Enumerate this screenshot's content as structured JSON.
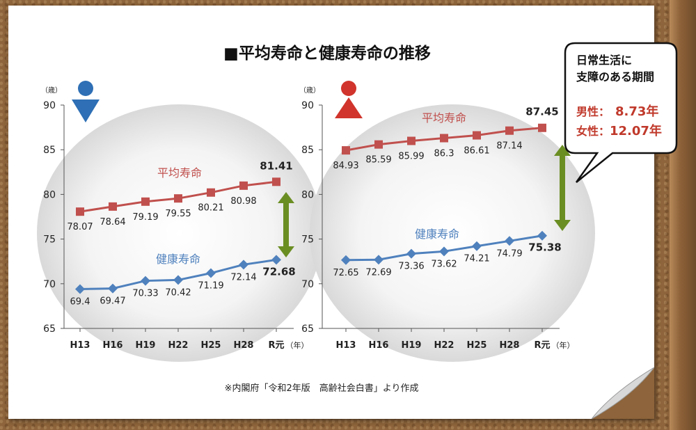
{
  "title": "■平均寿命と健康寿命の推移",
  "source": "※内閣府「令和2年版　高齢社会白書」より作成",
  "y_unit_label": "（歳）",
  "x_unit_label": "（年）",
  "callout": {
    "line1": "日常生活に",
    "line2": "支障のある期間",
    "male_label": "男性：",
    "male_value": "8.73年",
    "female_label": "女性：",
    "female_value": "12.07年"
  },
  "colors": {
    "average": "#c0504d",
    "healthy": "#4f81bd",
    "male_icon": "#2e6fb5",
    "female_icon": "#d0342c",
    "arrow": "#6b8e23"
  },
  "icons": {
    "male": "male-person-icon",
    "female": "female-person-icon"
  },
  "chart_data": [
    {
      "type": "line",
      "panel": "male",
      "categories": [
        "H13",
        "H16",
        "H19",
        "H22",
        "H25",
        "H28",
        "R元"
      ],
      "y_ticks": [
        "65",
        "70",
        "75",
        "80",
        "85",
        "90"
      ],
      "ylim": [
        65,
        90
      ],
      "series": [
        {
          "name": "平均寿命",
          "key": "average",
          "values": [
            78.07,
            78.64,
            79.19,
            79.55,
            80.21,
            80.98,
            81.41
          ],
          "labels": [
            "78.07",
            "78.64",
            "79.19",
            "79.55",
            "80.21",
            "80.98",
            "81.41"
          ]
        },
        {
          "name": "健康寿命",
          "key": "healthy",
          "values": [
            69.4,
            69.47,
            70.33,
            70.42,
            71.19,
            72.14,
            72.68
          ],
          "labels": [
            "69.4",
            "69.47",
            "70.33",
            "70.42",
            "71.19",
            "72.14",
            "72.68"
          ]
        }
      ]
    },
    {
      "type": "line",
      "panel": "female",
      "categories": [
        "H13",
        "H16",
        "H19",
        "H22",
        "H25",
        "H28",
        "R元"
      ],
      "y_ticks": [
        "65",
        "70",
        "75",
        "80",
        "85",
        "90"
      ],
      "ylim": [
        65,
        90
      ],
      "series": [
        {
          "name": "平均寿命",
          "key": "average",
          "values": [
            84.93,
            85.59,
            85.99,
            86.3,
            86.61,
            87.14,
            87.45
          ],
          "labels": [
            "84.93",
            "85.59",
            "85.99",
            "86.3",
            "86.61",
            "87.14",
            "87.45"
          ]
        },
        {
          "name": "健康寿命",
          "key": "healthy",
          "values": [
            72.65,
            72.69,
            73.36,
            73.62,
            74.21,
            74.79,
            75.38
          ],
          "labels": [
            "72.65",
            "72.69",
            "73.36",
            "73.62",
            "74.21",
            "74.79",
            "75.38"
          ]
        }
      ]
    }
  ]
}
